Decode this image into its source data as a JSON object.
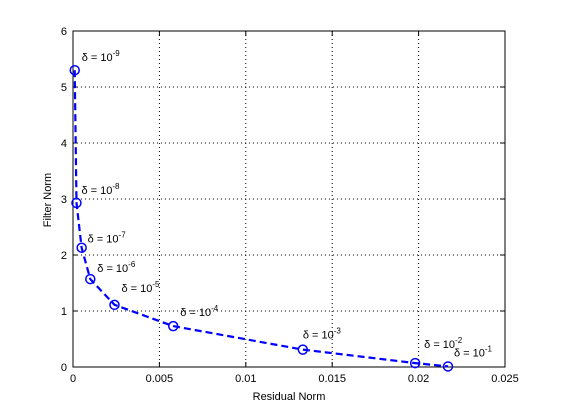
{
  "colors": {
    "series": "#0000ff",
    "axis": "#000000",
    "grid": "#000000",
    "background": "#ffffff"
  },
  "chart_data": {
    "type": "line",
    "title": "",
    "xlabel": "Residual Norm",
    "ylabel": "Filter Norm",
    "xlim": [
      0,
      0.025
    ],
    "ylim": [
      0,
      6
    ],
    "xticks": [
      0,
      0.005,
      0.01,
      0.015,
      0.02,
      0.025
    ],
    "xtick_labels": [
      "0",
      "0.005",
      "0.01",
      "0.015",
      "0.02",
      "0.025"
    ],
    "yticks": [
      0,
      1,
      2,
      3,
      4,
      5,
      6
    ],
    "ytick_labels": [
      "0",
      "1",
      "2",
      "3",
      "4",
      "5",
      "6"
    ],
    "grid": true,
    "grid_style": "dotted",
    "series": [
      {
        "line_style": "dashed",
        "marker": "circle",
        "x": [
          0.0001,
          0.0002,
          0.0005,
          0.001,
          0.0024,
          0.0058,
          0.0133,
          0.0198,
          0.0217
        ],
        "y": [
          5.3,
          2.93,
          2.13,
          1.57,
          1.11,
          0.73,
          0.31,
          0.07,
          0.01
        ],
        "point_labels": [
          {
            "base": "δ = 10",
            "exp": "-9"
          },
          {
            "base": "δ = 10",
            "exp": "-8"
          },
          {
            "base": "δ = 10",
            "exp": "-7"
          },
          {
            "base": "δ = 10",
            "exp": "-6"
          },
          {
            "base": "δ = 10",
            "exp": "-5"
          },
          {
            "base": "δ = 10",
            "exp": "-4"
          },
          {
            "base": "δ = 10",
            "exp": "-3"
          },
          {
            "base": "δ = 10",
            "exp": "-2"
          },
          {
            "base": "δ = 10",
            "exp": "-1"
          }
        ]
      }
    ]
  }
}
